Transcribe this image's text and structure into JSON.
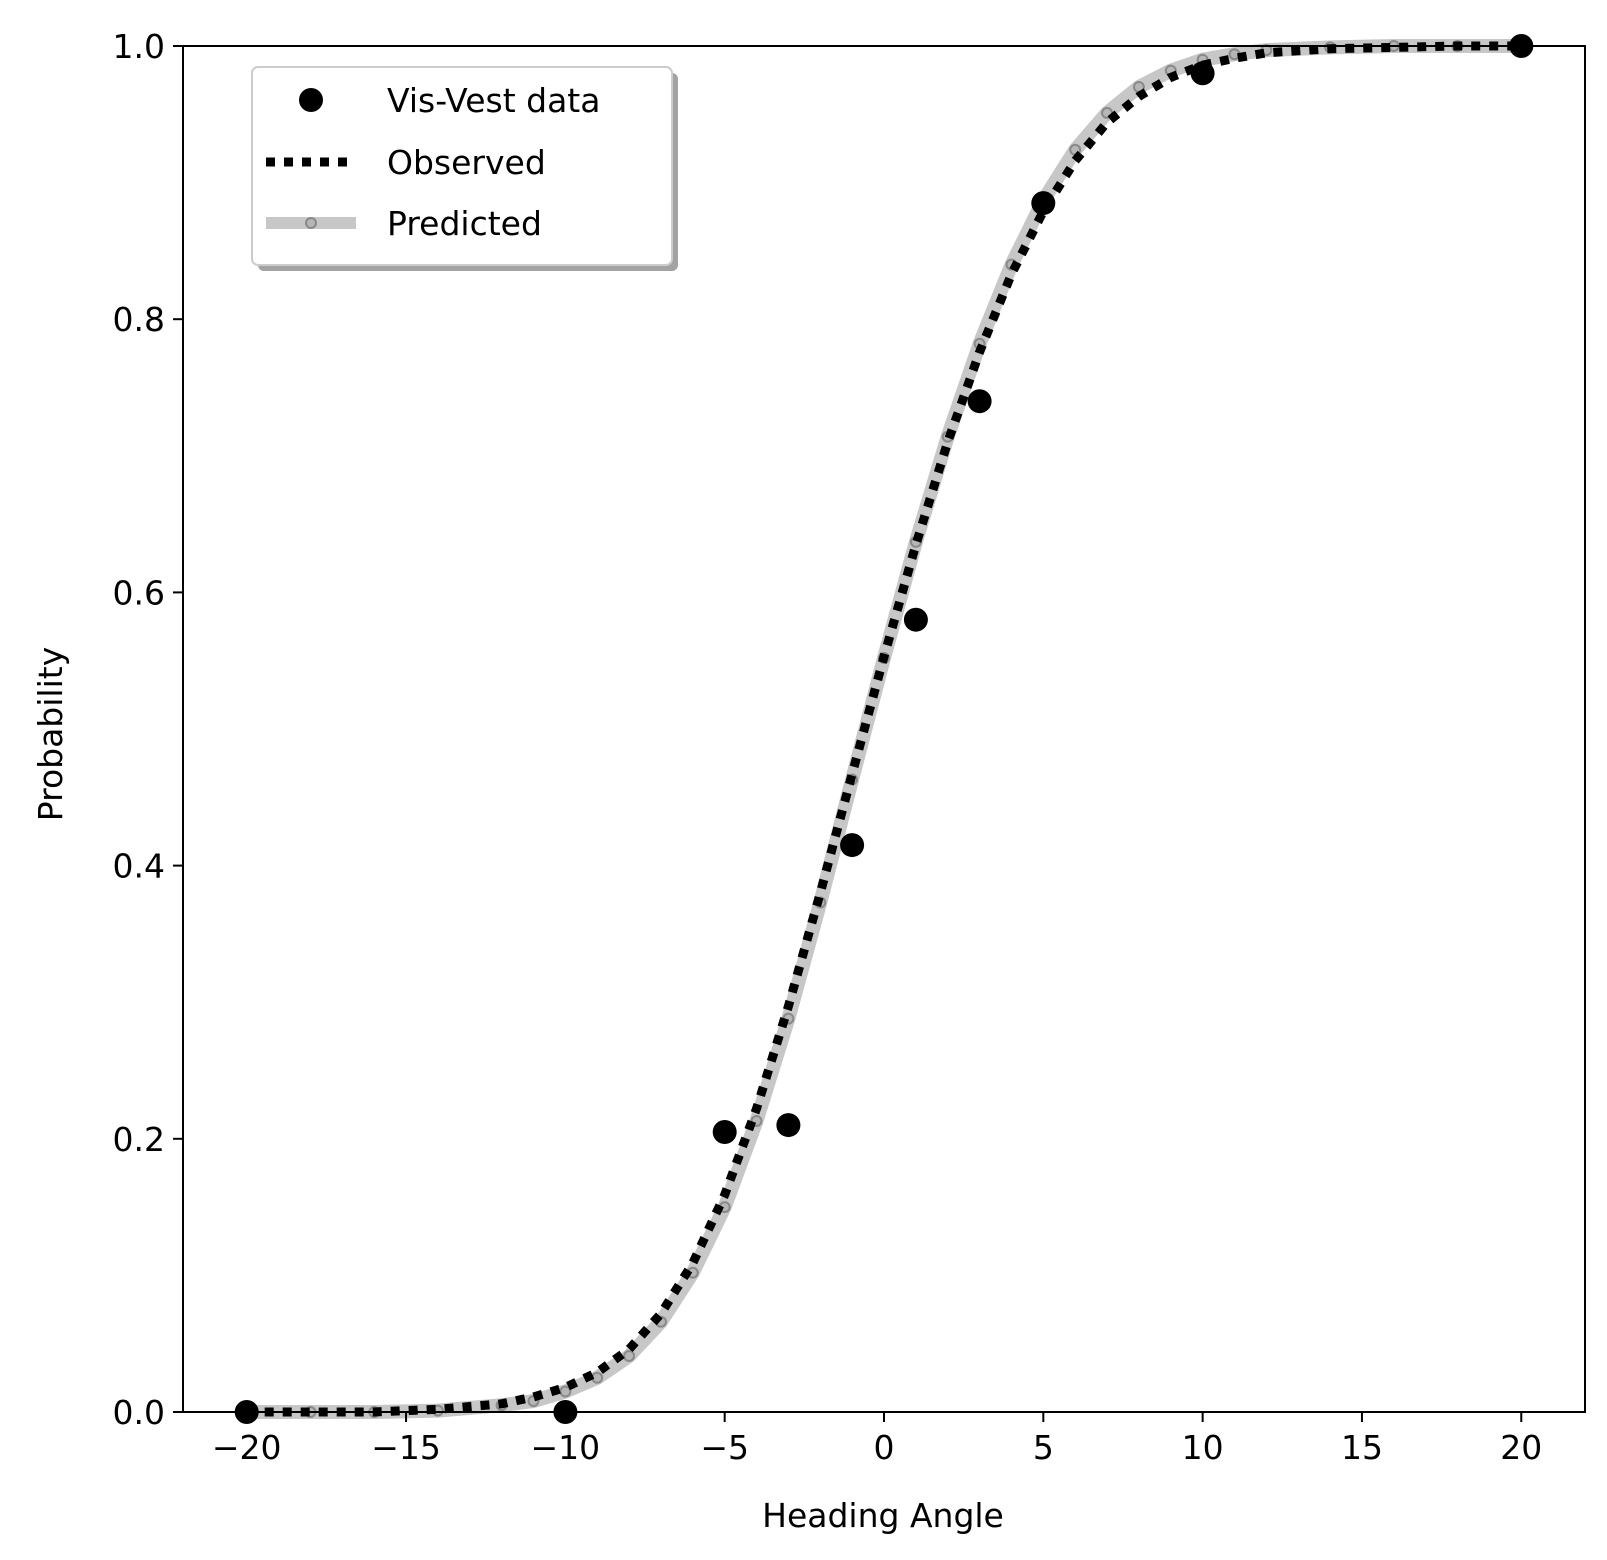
{
  "chart_data": {
    "type": "line",
    "xlabel": "Heading Angle",
    "ylabel": "Probability",
    "xlim": [
      -22,
      22
    ],
    "ylim": [
      0.0,
      1.0
    ],
    "x_ticks": [
      -20,
      -15,
      -10,
      -5,
      0,
      5,
      10,
      15,
      20
    ],
    "x_tick_labels": [
      "−20",
      "−15",
      "−10",
      "−5",
      "0",
      "5",
      "10",
      "15",
      "20"
    ],
    "y_ticks": [
      0.0,
      0.2,
      0.4,
      0.6,
      0.8,
      1.0
    ],
    "y_tick_labels": [
      "0.0",
      "0.2",
      "0.4",
      "0.6",
      "0.8",
      "1.0"
    ],
    "grid": false,
    "legend_position": "upper-left",
    "series": [
      {
        "name": "Vis-Vest data",
        "style": "markers",
        "color": "#000000",
        "x": [
          -20,
          -10,
          -5,
          -3,
          -1,
          1,
          3,
          5,
          10,
          20
        ],
        "y": [
          0.0,
          0.0,
          0.205,
          0.21,
          0.415,
          0.58,
          0.74,
          0.885,
          0.98,
          1.0
        ]
      },
      {
        "name": "Observed",
        "style": "dotted-line",
        "color": "#000000",
        "x": [
          -20,
          -18,
          -16,
          -14,
          -12,
          -11,
          -10,
          -9,
          -8,
          -7,
          -6,
          -5,
          -4,
          -3,
          -2,
          -1,
          0,
          1,
          2,
          3,
          4,
          5,
          6,
          7,
          8,
          9,
          10,
          11,
          12,
          14,
          16,
          18,
          20
        ],
        "y": [
          0.0,
          0.0,
          0.0,
          0.002,
          0.006,
          0.011,
          0.018,
          0.029,
          0.046,
          0.072,
          0.109,
          0.159,
          0.222,
          0.297,
          0.38,
          0.467,
          0.553,
          0.635,
          0.71,
          0.776,
          0.833,
          0.879,
          0.916,
          0.944,
          0.963,
          0.977,
          0.986,
          0.991,
          0.995,
          0.998,
          0.999,
          1.0,
          1.0
        ]
      },
      {
        "name": "Predicted",
        "style": "thick-line-markers",
        "color": "#999999",
        "x": [
          -20,
          -18,
          -16,
          -14,
          -12,
          -11,
          -10,
          -9,
          -8,
          -7,
          -6,
          -5,
          -4,
          -3,
          -2,
          -1,
          0,
          1,
          2,
          3,
          4,
          5,
          6,
          7,
          8,
          9,
          10,
          11,
          12,
          14,
          16,
          18,
          20
        ],
        "y": [
          0.0,
          0.0,
          0.0,
          0.001,
          0.005,
          0.008,
          0.015,
          0.025,
          0.041,
          0.066,
          0.102,
          0.15,
          0.213,
          0.288,
          0.373,
          0.463,
          0.552,
          0.637,
          0.714,
          0.782,
          0.84,
          0.887,
          0.924,
          0.951,
          0.97,
          0.982,
          0.99,
          0.994,
          0.997,
          0.999,
          1.0,
          1.0,
          1.0
        ]
      }
    ]
  }
}
